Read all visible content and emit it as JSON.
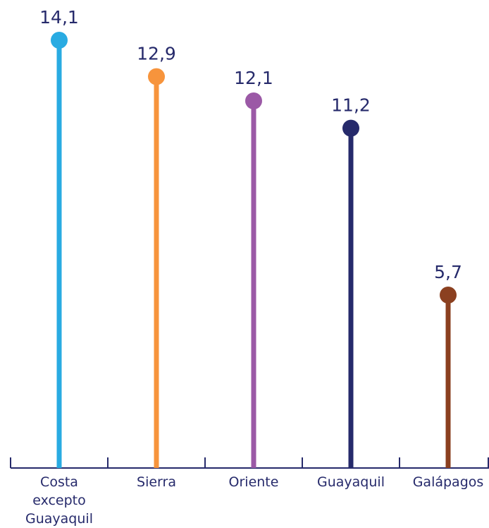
{
  "chart_data": {
    "type": "lollipop",
    "categories": [
      "Costa excepto Guayaquil",
      "Sierra",
      "Oriente",
      "Guayaquil",
      "Galápagos"
    ],
    "category_lines": [
      [
        "Costa",
        "excepto",
        "Guayaquil"
      ],
      [
        "Sierra"
      ],
      [
        "Oriente"
      ],
      [
        "Guayaquil"
      ],
      [
        "Galápagos"
      ]
    ],
    "values": [
      14.1,
      12.9,
      12.1,
      11.2,
      5.7
    ],
    "value_labels": [
      "14,1",
      "12,9",
      "12,1",
      "11,2",
      "5,7"
    ],
    "colors": [
      "#29abe2",
      "#f7943c",
      "#9b59a6",
      "#262a6b",
      "#8b4020"
    ],
    "axis_color": "#262a6b",
    "text_color": "#262a6b",
    "title": "",
    "xlabel": "",
    "ylabel": "",
    "ylim": [
      0,
      14.1
    ],
    "grid": false,
    "legend": "none"
  }
}
